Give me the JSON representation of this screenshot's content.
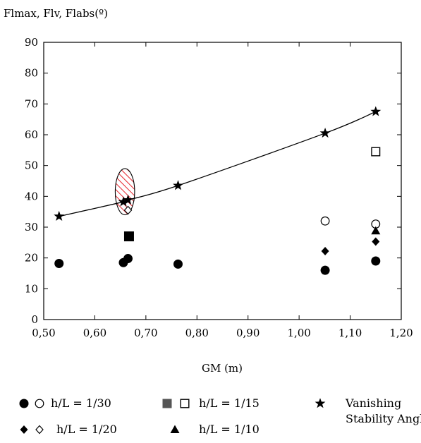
{
  "chart_data": {
    "type": "scatter",
    "ylabel": "Flmax, Flv, Flabs(º)",
    "xlabel": "GM (m)",
    "xlim": [
      0.5,
      1.2
    ],
    "ylim": [
      0,
      90
    ],
    "x_ticks": [
      "0,50",
      "0,60",
      "0,70",
      "0,80",
      "0,90",
      "1,00",
      "1,10",
      "1,20"
    ],
    "x_tick_values": [
      0.5,
      0.6,
      0.7,
      0.8,
      0.9,
      1.0,
      1.1,
      1.2
    ],
    "y_ticks": [
      "0",
      "10",
      "20",
      "30",
      "40",
      "50",
      "60",
      "70",
      "80",
      "90"
    ],
    "y_tick_values": [
      0,
      10,
      20,
      30,
      40,
      50,
      60,
      70,
      80,
      90
    ],
    "grid": false,
    "legend_position": "bottom",
    "series": [
      {
        "marker": "filled-circle",
        "label_group": "h/L = 1/30",
        "points": [
          [
            0.53,
            18.2
          ],
          [
            0.656,
            18.5
          ],
          [
            0.665,
            19.8
          ],
          [
            0.763,
            18.0
          ],
          [
            1.051,
            16.0
          ],
          [
            1.15,
            19.0
          ]
        ]
      },
      {
        "marker": "open-circle",
        "label_group": "h/L = 1/30",
        "points": [
          [
            1.051,
            32.0
          ],
          [
            1.15,
            31.0
          ]
        ]
      },
      {
        "marker": "filled-square",
        "label_group": "h/L = 1/15",
        "points": [
          [
            0.667,
            27.0
          ]
        ]
      },
      {
        "marker": "open-square",
        "label_group": "h/L = 1/15",
        "points": [
          [
            1.15,
            54.5
          ]
        ]
      },
      {
        "marker": "filled-diamond",
        "label_group": "h/L = 1/20",
        "points": [
          [
            1.051,
            22.2
          ],
          [
            1.15,
            25.3
          ]
        ]
      },
      {
        "marker": "open-diamond",
        "label_group": "h/L = 1/20",
        "points": [
          [
            0.665,
            35.5
          ]
        ]
      },
      {
        "marker": "filled-triangle",
        "label_group": "h/L = 1/10",
        "points": [
          [
            1.15,
            28.8
          ]
        ]
      },
      {
        "marker": "star",
        "label_group": "Vanishing Stability Angle",
        "line": true,
        "points": [
          [
            0.53,
            33.5
          ],
          [
            0.656,
            38.2
          ],
          [
            0.665,
            38.8
          ],
          [
            0.763,
            43.5
          ],
          [
            1.051,
            60.5
          ],
          [
            1.15,
            67.5
          ]
        ]
      }
    ],
    "annotations": [
      {
        "shape": "hatched-ellipse",
        "hatch_color": "#e8333a",
        "center": [
          0.659,
          41.5
        ],
        "rx": 0.019,
        "ry": 7.5
      }
    ],
    "legend": {
      "entries": [
        {
          "markers": [
            "filled-circle",
            "open-circle"
          ],
          "text": "h/L = 1/30"
        },
        {
          "markers": [
            "filled-square-gray",
            "open-square"
          ],
          "text": "h/L = 1/15"
        },
        {
          "markers": [
            "star"
          ],
          "text": "Vanishing",
          "text2": "Stability Angle"
        },
        {
          "markers": [
            "filled-diamond",
            "open-diamond"
          ],
          "text": "h/L = 1/20"
        },
        {
          "markers": [
            "filled-triangle"
          ],
          "text": "h/L = 1/10"
        }
      ]
    },
    "colors": {
      "marker": "#000000",
      "legend_square": "#555555",
      "hatch": "#e8333a"
    }
  }
}
